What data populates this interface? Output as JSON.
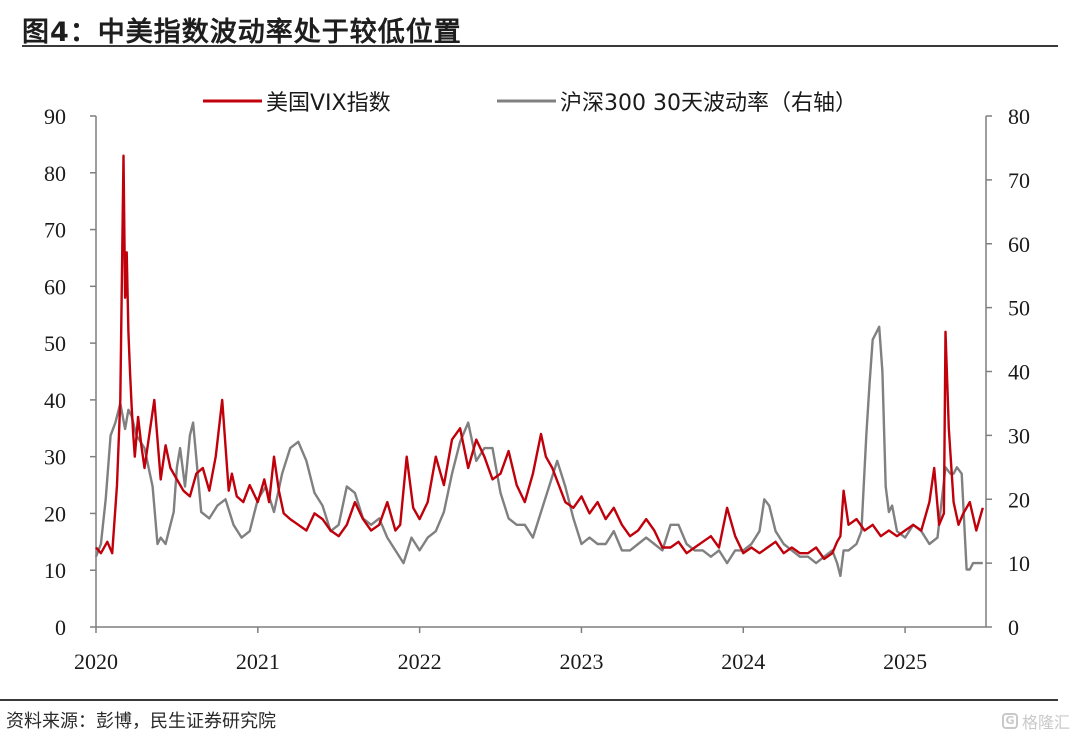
{
  "title": "图4：中美指数波动率处于较低位置",
  "source": "资料来源：彭博，民生证券研究院",
  "watermark": "格隆汇",
  "colors": {
    "vix": "#c0000b",
    "csi": "#808080",
    "axis": "#7f7f7f"
  },
  "chart_data": {
    "type": "line",
    "title": "中美指数波动率处于较低位置",
    "x_range": [
      2020.0,
      2025.5
    ],
    "x_ticks": [
      2020,
      2021,
      2022,
      2023,
      2024,
      2025
    ],
    "x_tick_labels": [
      "2020",
      "2021",
      "2022",
      "2023",
      "2024",
      "2025"
    ],
    "left_axis": {
      "ylim": [
        0,
        90
      ],
      "ticks": [
        0,
        10,
        20,
        30,
        40,
        50,
        60,
        70,
        80,
        90
      ]
    },
    "right_axis": {
      "ylim": [
        0,
        80
      ],
      "ticks": [
        0,
        10,
        20,
        30,
        40,
        50,
        60,
        70,
        80
      ]
    },
    "legend_position": "top",
    "series": [
      {
        "name": "美国VIX指数",
        "axis": "left",
        "color": "#c0000b",
        "x": [
          2020.0,
          2020.03,
          2020.07,
          2020.1,
          2020.13,
          2020.15,
          2020.17,
          2020.18,
          2020.19,
          2020.2,
          2020.21,
          2020.22,
          2020.23,
          2020.24,
          2020.26,
          2020.28,
          2020.3,
          2020.33,
          2020.36,
          2020.4,
          2020.43,
          2020.46,
          2020.5,
          2020.54,
          2020.58,
          2020.62,
          2020.66,
          2020.7,
          2020.74,
          2020.78,
          2020.82,
          2020.84,
          2020.87,
          2020.91,
          2020.95,
          2021.0,
          2021.04,
          2021.07,
          2021.1,
          2021.13,
          2021.16,
          2021.2,
          2021.25,
          2021.3,
          2021.35,
          2021.4,
          2021.45,
          2021.5,
          2021.55,
          2021.6,
          2021.65,
          2021.7,
          2021.75,
          2021.8,
          2021.85,
          2021.88,
          2021.92,
          2021.96,
          2022.0,
          2022.05,
          2022.1,
          2022.15,
          2022.2,
          2022.25,
          2022.3,
          2022.35,
          2022.4,
          2022.45,
          2022.5,
          2022.55,
          2022.6,
          2022.65,
          2022.7,
          2022.75,
          2022.78,
          2022.82,
          2022.86,
          2022.9,
          2022.95,
          2023.0,
          2023.05,
          2023.1,
          2023.15,
          2023.2,
          2023.25,
          2023.3,
          2023.35,
          2023.4,
          2023.45,
          2023.5,
          2023.55,
          2023.6,
          2023.65,
          2023.7,
          2023.75,
          2023.8,
          2023.85,
          2023.9,
          2023.95,
          2024.0,
          2024.05,
          2024.1,
          2024.15,
          2024.2,
          2024.25,
          2024.3,
          2024.35,
          2024.4,
          2024.45,
          2024.5,
          2024.55,
          2024.58,
          2024.6,
          2024.62,
          2024.65,
          2024.7,
          2024.75,
          2024.8,
          2024.85,
          2024.9,
          2024.95,
          2025.0,
          2025.05,
          2025.1,
          2025.15,
          2025.18,
          2025.21,
          2025.24,
          2025.25,
          2025.27,
          2025.3,
          2025.33,
          2025.36,
          2025.4,
          2025.44,
          2025.48
        ],
        "values": [
          14,
          13,
          15,
          13,
          25,
          40,
          83,
          58,
          66,
          52,
          45,
          39,
          34,
          30,
          37,
          32,
          28,
          34,
          40,
          26,
          32,
          28,
          26,
          24,
          23,
          27,
          28,
          24,
          30,
          40,
          24,
          27,
          23,
          22,
          25,
          22,
          26,
          22,
          30,
          24,
          20,
          19,
          18,
          17,
          20,
          19,
          17,
          16,
          18,
          22,
          19,
          17,
          18,
          22,
          17,
          18,
          30,
          21,
          19,
          22,
          30,
          25,
          33,
          35,
          28,
          33,
          30,
          26,
          27,
          31,
          25,
          22,
          27,
          34,
          30,
          28,
          25,
          22,
          21,
          23,
          20,
          22,
          19,
          21,
          18,
          16,
          17,
          19,
          17,
          14,
          14,
          15,
          13,
          14,
          15,
          16,
          14,
          21,
          16,
          13,
          14,
          13,
          14,
          15,
          13,
          14,
          13,
          13,
          14,
          12,
          13,
          15,
          16,
          24,
          18,
          19,
          17,
          18,
          16,
          17,
          16,
          17,
          18,
          17,
          22,
          28,
          18,
          20,
          52,
          35,
          22,
          18,
          20,
          22,
          17,
          21
        ]
      },
      {
        "name": "沪深300 30天波动率（右轴）",
        "axis": "right",
        "color": "#808080",
        "x": [
          2020.0,
          2020.03,
          2020.06,
          2020.09,
          2020.12,
          2020.15,
          2020.18,
          2020.2,
          2020.22,
          2020.25,
          2020.3,
          2020.35,
          2020.38,
          2020.4,
          2020.43,
          2020.45,
          2020.48,
          2020.5,
          2020.52,
          2020.55,
          2020.58,
          2020.6,
          2020.65,
          2020.7,
          2020.75,
          2020.8,
          2020.85,
          2020.9,
          2020.95,
          2021.0,
          2021.05,
          2021.1,
          2021.15,
          2021.2,
          2021.25,
          2021.3,
          2021.35,
          2021.4,
          2021.45,
          2021.5,
          2021.55,
          2021.6,
          2021.65,
          2021.7,
          2021.75,
          2021.8,
          2021.85,
          2021.9,
          2021.95,
          2022.0,
          2022.05,
          2022.1,
          2022.15,
          2022.2,
          2022.25,
          2022.3,
          2022.35,
          2022.4,
          2022.45,
          2022.5,
          2022.55,
          2022.6,
          2022.65,
          2022.7,
          2022.75,
          2022.8,
          2022.85,
          2022.9,
          2022.95,
          2023.0,
          2023.05,
          2023.1,
          2023.15,
          2023.2,
          2023.25,
          2023.3,
          2023.35,
          2023.4,
          2023.45,
          2023.5,
          2023.55,
          2023.6,
          2023.65,
          2023.7,
          2023.75,
          2023.8,
          2023.85,
          2023.9,
          2023.95,
          2024.0,
          2024.05,
          2024.1,
          2024.13,
          2024.16,
          2024.2,
          2024.25,
          2024.3,
          2024.35,
          2024.4,
          2024.45,
          2024.5,
          2024.55,
          2024.58,
          2024.6,
          2024.62,
          2024.65,
          2024.7,
          2024.73,
          2024.76,
          2024.78,
          2024.8,
          2024.82,
          2024.84,
          2024.86,
          2024.88,
          2024.9,
          2024.92,
          2024.95,
          2025.0,
          2025.05,
          2025.1,
          2025.15,
          2025.2,
          2025.25,
          2025.28,
          2025.3,
          2025.32,
          2025.35,
          2025.38,
          2025.4,
          2025.42,
          2025.45,
          2025.48
        ],
        "values": [
          11,
          13,
          20,
          30,
          32,
          35,
          31,
          34,
          33,
          30,
          28,
          22,
          13,
          14,
          13,
          15,
          18,
          25,
          28,
          22,
          30,
          32,
          18,
          17,
          19,
          20,
          16,
          14,
          15,
          20,
          22,
          18,
          24,
          28,
          29,
          26,
          21,
          19,
          15,
          16,
          22,
          21,
          17,
          16,
          17,
          14,
          12,
          10,
          14,
          12,
          14,
          15,
          18,
          24,
          29,
          32,
          26,
          28,
          28,
          21,
          17,
          16,
          16,
          14,
          18,
          22,
          26,
          22,
          17,
          13,
          14,
          13,
          13,
          15,
          12,
          12,
          13,
          14,
          13,
          12,
          16,
          16,
          13,
          12,
          12,
          11,
          12,
          10,
          12,
          12,
          13,
          15,
          20,
          19,
          15,
          13,
          12,
          11,
          11,
          10,
          11,
          12,
          10,
          8,
          12,
          12,
          13,
          15,
          30,
          38,
          45,
          46,
          47,
          40,
          22,
          18,
          19,
          15,
          14,
          16,
          15,
          13,
          14,
          25,
          24,
          24,
          25,
          24,
          9,
          9,
          10,
          10,
          10
        ]
      }
    ]
  }
}
